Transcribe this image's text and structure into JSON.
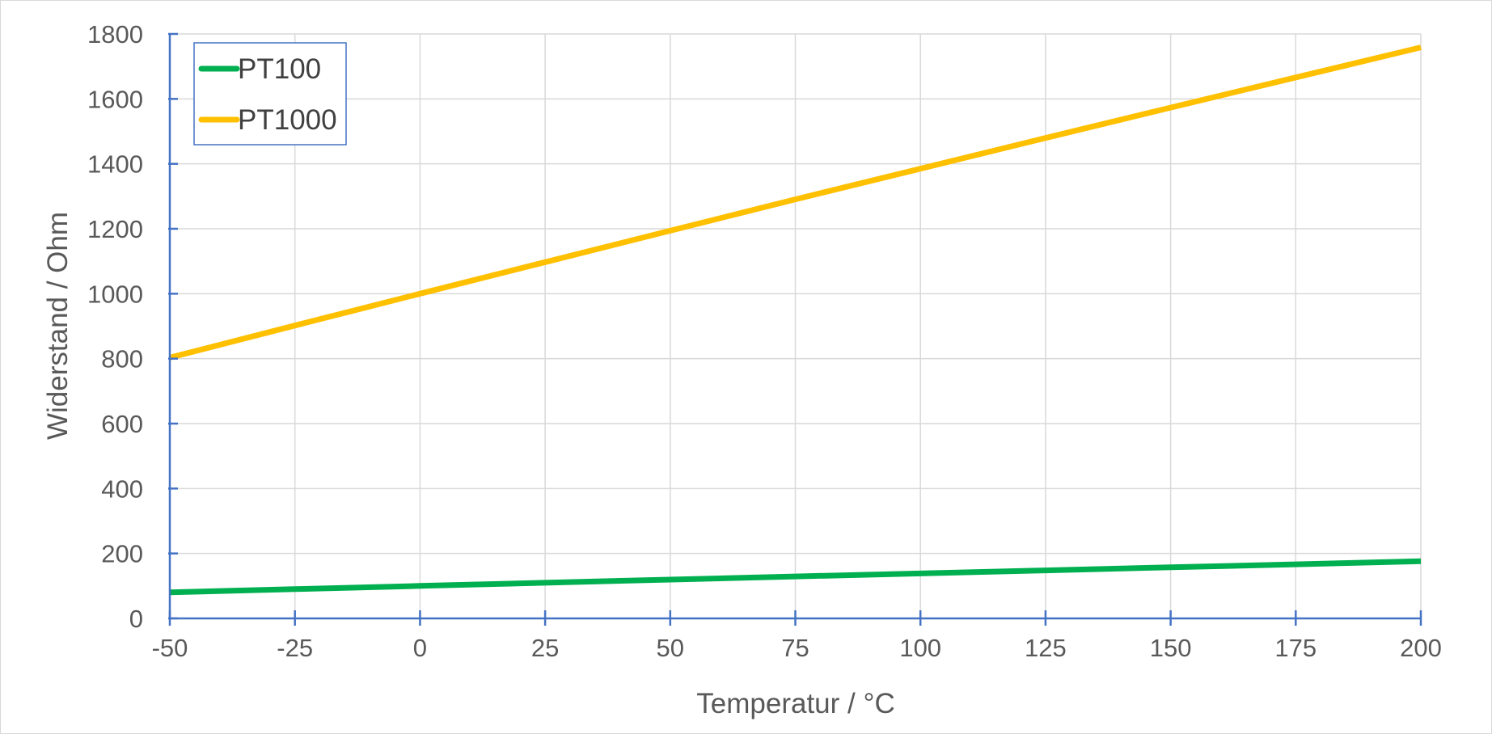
{
  "chart_data": {
    "type": "line",
    "title": "",
    "xlabel": "Temperatur / °C",
    "ylabel": "Widerstand / Ohm",
    "xlim": [
      -50,
      200
    ],
    "ylim": [
      0,
      1800
    ],
    "xticks": [
      -50,
      -25,
      0,
      25,
      50,
      75,
      100,
      125,
      150,
      175,
      200
    ],
    "yticks": [
      0,
      200,
      400,
      600,
      800,
      1000,
      1200,
      1400,
      1600,
      1800
    ],
    "grid": true,
    "legend_position": "top-left",
    "series": [
      {
        "name": "PT100",
        "color": "#00b050",
        "x": [
          -50,
          -25,
          0,
          25,
          50,
          75,
          100,
          125,
          150,
          175,
          200
        ],
        "y": [
          80.3,
          90.2,
          100.0,
          109.7,
          119.4,
          129.1,
          138.5,
          147.9,
          157.3,
          166.6,
          175.9
        ]
      },
      {
        "name": "PT1000",
        "color": "#ffc000",
        "x": [
          -50,
          -25,
          0,
          25,
          50,
          75,
          100,
          125,
          150,
          175,
          200
        ],
        "y": [
          803.1,
          901.9,
          1000.0,
          1097.3,
          1194.0,
          1290.7,
          1385.1,
          1479.5,
          1573.3,
          1666.1,
          1758.6
        ]
      }
    ]
  },
  "axis_color": "#4472c4",
  "grid_color": "#d9d9d9",
  "legend_border_color": "#4472c4"
}
